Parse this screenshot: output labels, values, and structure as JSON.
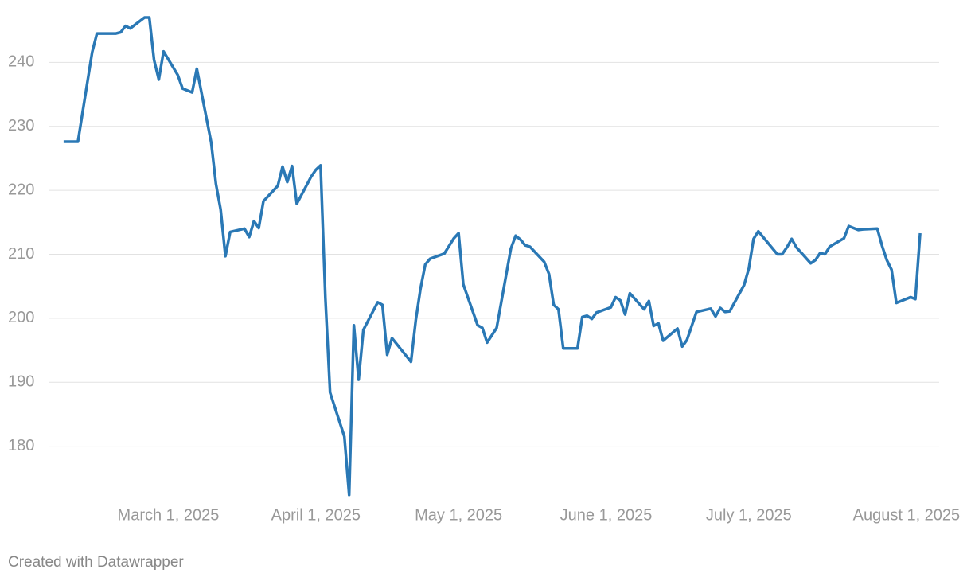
{
  "chart_data": {
    "type": "line",
    "x": [
      "2025-02-07",
      "2025-02-10",
      "2025-02-11",
      "2025-02-13",
      "2025-02-14",
      "2025-02-18",
      "2025-02-19",
      "2025-02-20",
      "2025-02-21",
      "2025-02-24",
      "2025-02-25",
      "2025-02-26",
      "2025-02-27",
      "2025-02-28",
      "2025-03-03",
      "2025-03-04",
      "2025-03-06",
      "2025-03-07",
      "2025-03-10",
      "2025-03-11",
      "2025-03-12",
      "2025-03-13",
      "2025-03-14",
      "2025-03-17",
      "2025-03-18",
      "2025-03-19",
      "2025-03-20",
      "2025-03-21",
      "2025-03-24",
      "2025-03-25",
      "2025-03-26",
      "2025-03-27",
      "2025-03-28",
      "2025-03-31",
      "2025-04-01",
      "2025-04-02",
      "2025-04-03",
      "2025-04-04",
      "2025-04-07",
      "2025-04-08",
      "2025-04-09",
      "2025-04-10",
      "2025-04-11",
      "2025-04-14",
      "2025-04-15",
      "2025-04-16",
      "2025-04-17",
      "2025-04-21",
      "2025-04-22",
      "2025-04-23",
      "2025-04-24",
      "2025-04-25",
      "2025-04-28",
      "2025-04-30",
      "2025-05-01",
      "2025-05-02",
      "2025-05-05",
      "2025-05-06",
      "2025-05-07",
      "2025-05-09",
      "2025-05-12",
      "2025-05-13",
      "2025-05-14",
      "2025-05-15",
      "2025-05-16",
      "2025-05-19",
      "2025-05-20",
      "2025-05-21",
      "2025-05-22",
      "2025-05-23",
      "2025-05-26",
      "2025-05-27",
      "2025-05-28",
      "2025-05-29",
      "2025-05-30",
      "2025-06-02",
      "2025-06-03",
      "2025-06-04",
      "2025-06-05",
      "2025-06-06",
      "2025-06-09",
      "2025-06-10",
      "2025-06-11",
      "2025-06-12",
      "2025-06-13",
      "2025-06-16",
      "2025-06-17",
      "2025-06-18",
      "2025-06-20",
      "2025-06-23",
      "2025-06-24",
      "2025-06-25",
      "2025-06-26",
      "2025-06-27",
      "2025-06-30",
      "2025-07-01",
      "2025-07-02",
      "2025-07-03",
      "2025-07-07",
      "2025-07-08",
      "2025-07-09",
      "2025-07-10",
      "2025-07-11",
      "2025-07-14",
      "2025-07-15",
      "2025-07-16",
      "2025-07-17",
      "2025-07-18",
      "2025-07-21",
      "2025-07-22",
      "2025-07-23",
      "2025-07-24",
      "2025-07-25",
      "2025-07-28",
      "2025-07-29",
      "2025-07-30",
      "2025-07-31",
      "2025-08-01",
      "2025-08-04",
      "2025-08-05",
      "2025-08-06"
    ],
    "series": [
      {
        "color": "#2a78b5",
        "values": [
          227.6,
          227.6,
          232.3,
          241.6,
          244.5,
          244.5,
          244.7,
          245.7,
          245.3,
          247.0,
          247.0,
          240.4,
          237.3,
          241.7,
          238.0,
          235.9,
          235.3,
          239.0,
          227.5,
          221.0,
          217.0,
          209.7,
          213.5,
          214.0,
          212.7,
          215.2,
          214.1,
          218.3,
          220.7,
          223.7,
          221.3,
          223.8,
          217.9,
          222.1,
          223.2,
          223.9,
          203.2,
          188.4,
          181.5,
          172.4,
          198.9,
          190.4,
          198.2,
          202.5,
          202.1,
          194.3,
          196.9,
          193.2,
          199.7,
          204.6,
          208.4,
          209.3,
          210.1,
          212.5,
          213.3,
          205.3,
          198.9,
          198.5,
          196.2,
          198.5,
          210.9,
          212.9,
          212.3,
          211.4,
          211.2,
          208.8,
          206.9,
          202.1,
          201.4,
          195.3,
          195.3,
          200.2,
          200.4,
          199.9,
          200.9,
          201.7,
          203.3,
          202.8,
          200.6,
          203.9,
          201.4,
          202.7,
          198.8,
          199.2,
          196.5,
          198.4,
          195.6,
          196.6,
          201.0,
          201.5,
          200.3,
          201.6,
          201.0,
          201.1,
          205.2,
          207.8,
          212.4,
          213.6,
          210.0,
          210.0,
          211.1,
          212.4,
          211.1,
          208.6,
          209.1,
          210.2,
          210.0,
          211.2,
          212.5,
          214.4,
          214.1,
          213.8,
          213.9,
          214.0,
          211.3,
          209.1,
          207.6,
          202.4,
          203.3,
          203.0,
          213.3
        ]
      }
    ],
    "xlim": [
      "2025-02-04",
      "2025-08-10"
    ],
    "xticks": [
      {
        "value": "2025-03-01",
        "label": "March 1, 2025"
      },
      {
        "value": "2025-04-01",
        "label": "April 1, 2025"
      },
      {
        "value": "2025-05-01",
        "label": "May 1, 2025"
      },
      {
        "value": "2025-06-01",
        "label": "June 1, 2025"
      },
      {
        "value": "2025-07-01",
        "label": "July 1, 2025"
      },
      {
        "value": "2025-08-01",
        "label": "August 1, 2025"
      }
    ],
    "ylim": [
      172,
      248
    ],
    "yticks": [
      180,
      190,
      200,
      210,
      220,
      230,
      240
    ],
    "grid": true,
    "footer": "Created with Datawrapper"
  }
}
